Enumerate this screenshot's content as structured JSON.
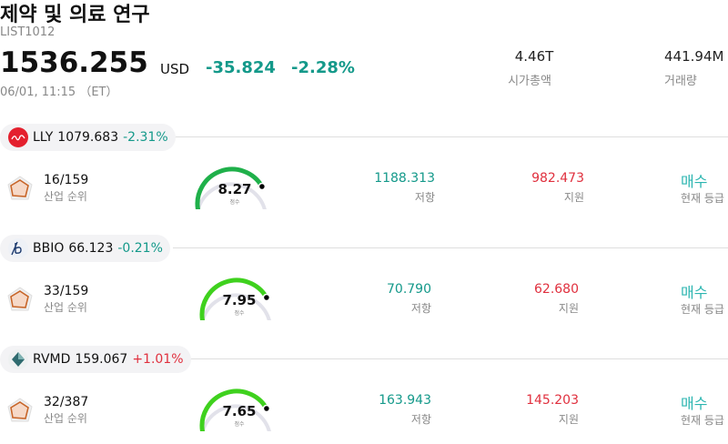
{
  "header": {
    "title": "제약 및 의료 연구",
    "code": "LIST1012",
    "price": "1536.255",
    "currency": "USD",
    "change": "-35.824",
    "change_pct": "-2.28%",
    "datetime": "06/01, 11:15 （ET）",
    "market_cap": "4.46T",
    "market_cap_label": "시가총액",
    "volume": "441.94M",
    "volume_label": "거래량"
  },
  "stocks": [
    {
      "ticker": "LLY",
      "price": "1079.683",
      "change_pct": "-2.31%",
      "rank": "16/159",
      "rank_label": "산업 순위",
      "score": "8.27",
      "score_label": "점수",
      "resistance": "1188.313",
      "resistance_label": "저항",
      "support": "982.473",
      "support_label": "지원",
      "rating": "매수",
      "rating_label": "현재 등급"
    },
    {
      "ticker": "BBIO",
      "price": "66.123",
      "change_pct": "-0.21%",
      "rank": "33/159",
      "rank_label": "산업 순위",
      "score": "7.95",
      "score_label": "점수",
      "resistance": "70.790",
      "resistance_label": "저항",
      "support": "62.680",
      "support_label": "지원",
      "rating": "매수",
      "rating_label": "현재 등급"
    },
    {
      "ticker": "RVMD",
      "price": "159.067",
      "change_pct": "+1.01%",
      "rank": "32/387",
      "rank_label": "산업 순위",
      "score": "7.65",
      "score_label": "점수",
      "resistance": "163.943",
      "resistance_label": "저항",
      "support": "145.203",
      "support_label": "지원",
      "rating": "매수",
      "rating_label": "현재 등급"
    }
  ]
}
